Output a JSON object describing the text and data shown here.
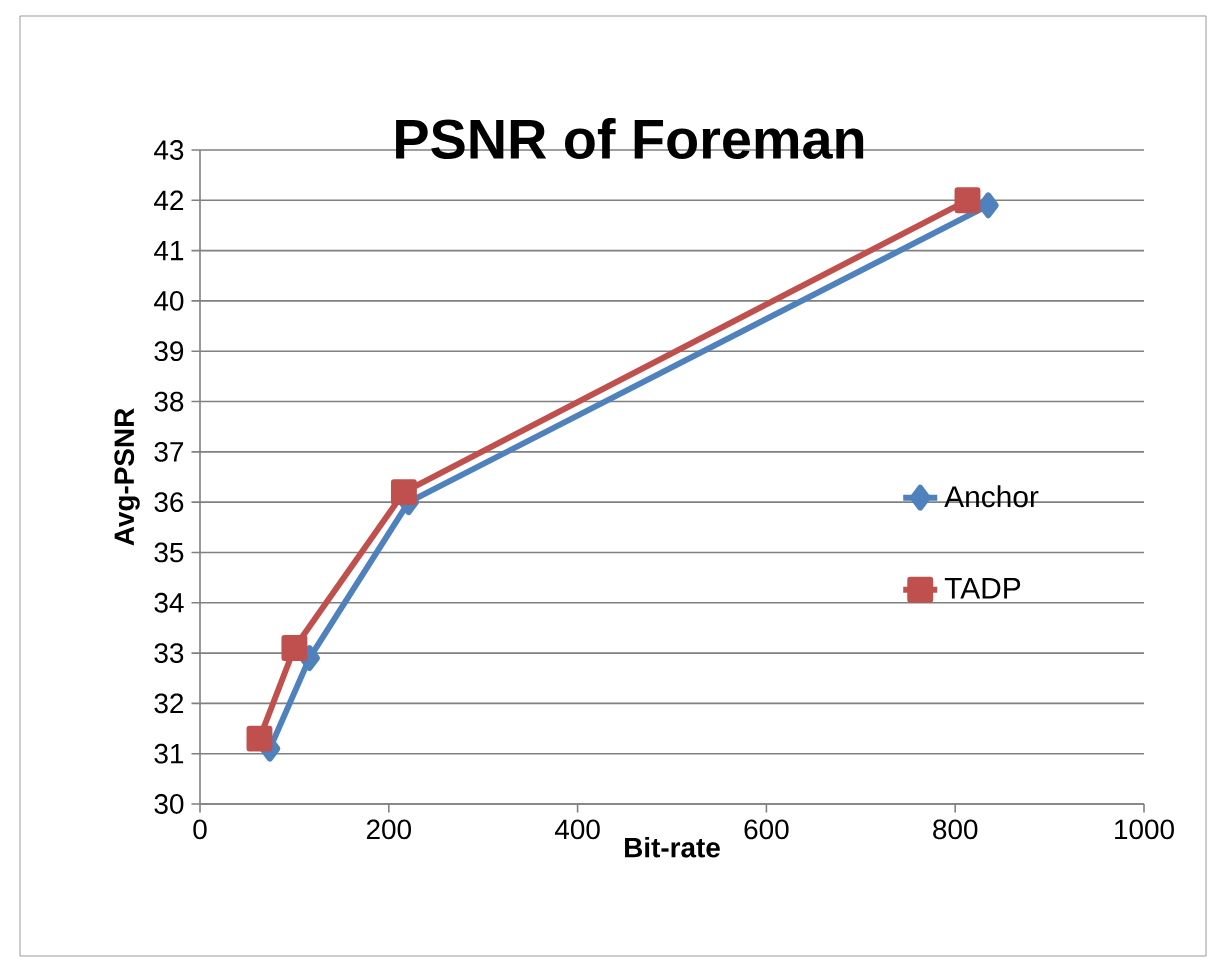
{
  "chart_data": {
    "type": "line",
    "title": "PSNR of Foreman",
    "xlabel": "Bit-rate",
    "ylabel": "Avg-PSNR",
    "series": [
      {
        "name": "Anchor",
        "color": "#4f81bd",
        "marker": "diamond",
        "x": [
          74,
          116,
          221,
          835
        ],
        "values": [
          31.1,
          32.9,
          36.0,
          41.9
        ]
      },
      {
        "name": "TADP",
        "color": "#c0504d",
        "marker": "square",
        "x": [
          63,
          100,
          216,
          813
        ],
        "values": [
          31.3,
          33.1,
          36.2,
          42.0
        ]
      }
    ],
    "xlim": [
      0,
      1000
    ],
    "xticks": [
      0,
      200,
      400,
      600,
      800,
      1000
    ],
    "ylim": [
      30,
      43
    ],
    "yticks": [
      30,
      31,
      32,
      33,
      34,
      35,
      36,
      37,
      38,
      39,
      40,
      41,
      42,
      43
    ],
    "grid": "y",
    "legend": "right",
    "line_style": "solid"
  }
}
